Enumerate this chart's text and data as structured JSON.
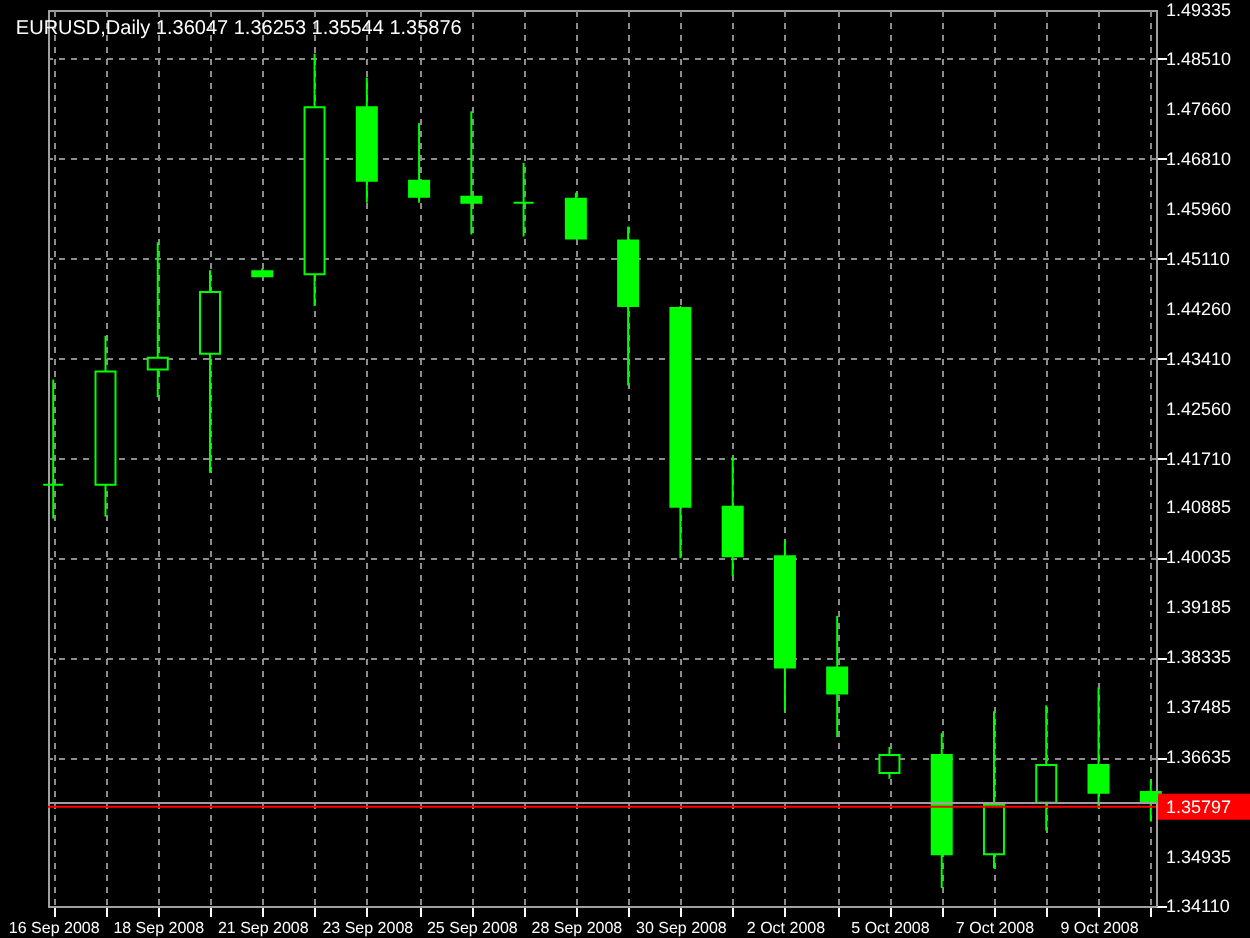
{
  "chart_data": {
    "type": "candlestick",
    "title": "EURUSD,Daily  1.36047 1.36253 1.35544 1.35876",
    "categories": [
      "16 Sep 2008",
      null,
      "18 Sep 2008",
      null,
      "21 Sep 2008",
      null,
      "23 Sep 2008",
      null,
      "25 Sep 2008",
      null,
      "28 Sep 2008",
      null,
      "30 Sep 2008",
      null,
      "2 Oct 2008",
      null,
      "5 Oct 2008",
      null,
      "7 Oct 2008",
      null,
      "9 Oct 2008",
      null
    ],
    "ohlc": [
      [
        1.41267,
        1.43056,
        1.40693,
        1.41267
      ],
      [
        1.41267,
        1.43799,
        1.40727,
        1.43191
      ],
      [
        1.43225,
        1.45386,
        1.42753,
        1.43428
      ],
      [
        1.43495,
        1.44913,
        1.4147,
        1.44542
      ],
      [
        1.44896,
        1.44947,
        1.44812,
        1.44812
      ],
      [
        1.44846,
        1.48593,
        1.44306,
        1.47682
      ],
      [
        1.47682,
        1.48188,
        1.46061,
        1.46432
      ],
      [
        1.46432,
        1.47411,
        1.46061,
        1.46162
      ],
      [
        1.46162,
        1.47614,
        1.45521,
        1.46061
      ],
      [
        1.46061,
        1.46736,
        1.45487,
        1.46061
      ],
      [
        1.46129,
        1.4623,
        1.45453,
        1.45453
      ],
      [
        1.4542,
        1.45656,
        1.42955,
        1.44306
      ],
      [
        1.44272,
        1.44306,
        1.40018,
        1.40896
      ],
      [
        1.40896,
        1.4174,
        1.39714,
        1.40052
      ],
      [
        1.40052,
        1.40322,
        1.37418,
        1.38161
      ],
      [
        1.38161,
        1.39039,
        1.3698,
        1.37722
      ],
      [
        1.36372,
        1.36811,
        1.36271,
        1.36676
      ],
      [
        1.36676,
        1.37047,
        1.34414,
        1.34988
      ],
      [
        1.34988,
        1.37418,
        1.34751,
        1.35832
      ],
      [
        1.35866,
        1.3752,
        1.35393,
        1.36507
      ],
      [
        1.36507,
        1.37824,
        1.35764,
        1.36034
      ],
      [
        1.36047,
        1.36253,
        1.35544,
        1.35876
      ]
    ],
    "color": "#00ff00",
    "ylim": [
      1.3411,
      1.49335
    ],
    "yticks": [
      1.49335,
      {
        "value": 1.4851,
        "label": "1.48510"
      },
      {
        "value": 1.4766,
        "label": "1.47660"
      },
      {
        "value": 1.4681,
        "label": "1.46810"
      },
      {
        "value": 1.4596,
        "label": "1.45960"
      },
      {
        "value": 1.4511,
        "label": "1.45110"
      },
      {
        "value": 1.4426,
        "label": "1.44260"
      },
      {
        "value": 1.4341,
        "label": "1.43410"
      },
      {
        "value": 1.4256,
        "label": "1.42560"
      },
      {
        "value": 1.4171,
        "label": "1.41710"
      },
      1.40885,
      1.40035,
      1.39185,
      1.38335,
      1.37485,
      1.36635,
      1.34935,
      {
        "value": 1.3411,
        "label": "1.34110"
      }
    ],
    "ref_lines": [
      {
        "axis": "y",
        "value": 1.35797,
        "label": "1.35797",
        "color": "#ff0000"
      },
      {
        "axis": "y",
        "value": 1.35862,
        "color": "#a0a0a0"
      }
    ],
    "grid": true
  }
}
